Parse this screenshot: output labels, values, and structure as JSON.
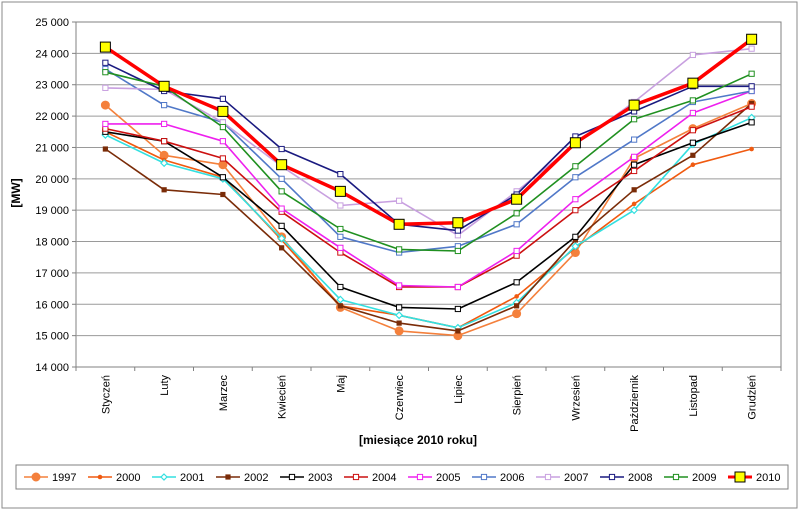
{
  "chart_data": {
    "type": "line",
    "xlabel": "[miesiące 2010  roku]",
    "ylabel": "[MW]",
    "ylim": [
      14000,
      25000
    ],
    "ytick_step": 1000,
    "ytick_labels": [
      "14 000",
      "15 000",
      "16 000",
      "17 000",
      "18 000",
      "19 000",
      "20 000",
      "21 000",
      "22 000",
      "23 000",
      "24 000",
      "25 000"
    ],
    "grid": true,
    "legend_position": "bottom",
    "categories": [
      "Styczeń",
      "Luty",
      "Marzec",
      "Kwiecień",
      "Maj",
      "Czerwiec",
      "Lipiec",
      "Sierpień",
      "Wrzesień",
      "Październik",
      "Listopad",
      "Grudzień"
    ],
    "series": [
      {
        "name": "1997",
        "color": "#f4803c",
        "marker": "circle",
        "values": [
          22350,
          20750,
          20450,
          18150,
          15900,
          15150,
          15000,
          15700,
          17650,
          20650,
          21600,
          22400
        ]
      },
      {
        "name": "2000",
        "color": "#f05a10",
        "marker": "dot",
        "values": [
          21500,
          20600,
          20050,
          18050,
          15950,
          15650,
          15250,
          16250,
          17800,
          19200,
          20450,
          20950
        ]
      },
      {
        "name": "2001",
        "color": "#33e0e0",
        "marker": "diamond",
        "values": [
          21400,
          20500,
          20000,
          18100,
          16150,
          15650,
          15250,
          16050,
          17850,
          19000,
          21100,
          21950
        ]
      },
      {
        "name": "2002",
        "color": "#7a2c08",
        "marker": "square-filled",
        "values": [
          20950,
          19650,
          19500,
          17800,
          15950,
          15400,
          15150,
          15950,
          18050,
          19650,
          20750,
          22400
        ]
      },
      {
        "name": "2003",
        "color": "#000000",
        "marker": "square-open",
        "values": [
          21500,
          21200,
          20050,
          18500,
          16550,
          15900,
          15850,
          16700,
          18150,
          20450,
          21150,
          21800
        ]
      },
      {
        "name": "2004",
        "color": "#cc1010",
        "marker": "square-open",
        "values": [
          21600,
          21200,
          20650,
          18950,
          17650,
          16550,
          16550,
          17550,
          19000,
          20250,
          21550,
          22300
        ]
      },
      {
        "name": "2005",
        "color": "#ee20ee",
        "marker": "square-open",
        "values": [
          21750,
          21750,
          21200,
          19050,
          17800,
          16600,
          16550,
          17700,
          19350,
          20700,
          22100,
          22800
        ]
      },
      {
        "name": "2006",
        "color": "#5078c8",
        "marker": "square-open",
        "values": [
          23500,
          22350,
          21800,
          20000,
          18150,
          17650,
          17850,
          18550,
          20050,
          21250,
          22450,
          22800
        ]
      },
      {
        "name": "2007",
        "color": "#c8a0e0",
        "marker": "square-open",
        "values": [
          22900,
          22850,
          21800,
          20400,
          19150,
          19300,
          18200,
          19600,
          21100,
          22450,
          23950,
          24150
        ]
      },
      {
        "name": "2008",
        "color": "#1a1a80",
        "marker": "square-open",
        "values": [
          23700,
          22800,
          22550,
          20950,
          20150,
          18550,
          18350,
          19500,
          21350,
          22150,
          22950,
          22950
        ]
      },
      {
        "name": "2009",
        "color": "#209020",
        "marker": "square-open",
        "values": [
          23400,
          22950,
          21650,
          19600,
          18400,
          17750,
          17700,
          18900,
          20400,
          21900,
          22500,
          23350
        ]
      },
      {
        "name": "2010",
        "color": "#ff0000",
        "marker": "square-yellow",
        "values": [
          24200,
          22950,
          22150,
          20450,
          19600,
          18550,
          18600,
          19350,
          21150,
          22350,
          23050,
          24450
        ]
      }
    ]
  }
}
